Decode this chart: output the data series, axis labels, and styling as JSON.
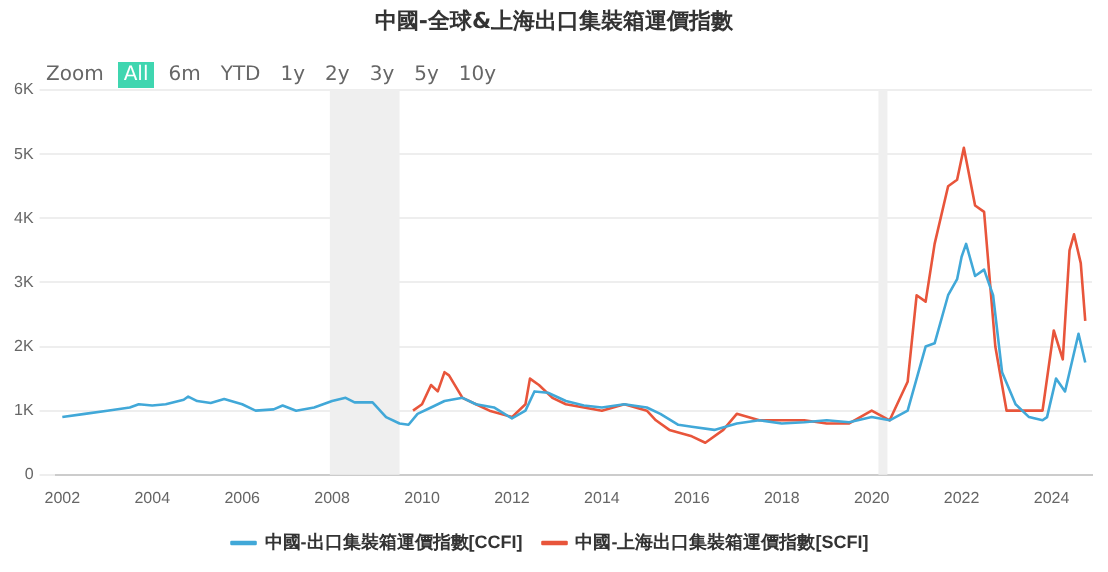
{
  "chart_data": {
    "type": "line",
    "title": "中國-全球&上海出口集裝箱運價指數",
    "annotations": [
      "Zoom",
      "All",
      "6m",
      "YTD",
      "1y",
      "2y",
      "3y",
      "5y",
      "10y"
    ],
    "xlim": [
      2001.85,
      2024.9
    ],
    "xticks": [
      2002,
      2004,
      2006,
      2008,
      2010,
      2012,
      2014,
      2016,
      2018,
      2020,
      2022,
      2024
    ],
    "ylim": [
      0,
      6000
    ],
    "yticks": [
      {
        "value": 0,
        "label": "0"
      },
      {
        "value": 1000,
        "label": "1K"
      },
      {
        "value": 2000,
        "label": "2K"
      },
      {
        "value": 3000,
        "label": "3K"
      },
      {
        "value": 4000,
        "label": "4K"
      },
      {
        "value": 5000,
        "label": "5K"
      },
      {
        "value": 6000,
        "label": "6K"
      }
    ],
    "grid": "y",
    "legend": "bottom",
    "marker": "none",
    "line_style": "solid",
    "bands": [
      {
        "axis": "x",
        "from": 2007.95,
        "to": 2009.5,
        "color": "#efefef"
      },
      {
        "axis": "x",
        "from": 2020.15,
        "to": 2020.35,
        "color": "#efefef"
      }
    ],
    "series": [
      {
        "name": "中國-出口集裝箱運價指數[CCFI]",
        "color": "#41a8d8",
        "x": [
          2002,
          2002.5,
          2003,
          2003.5,
          2003.7,
          2004,
          2004.3,
          2004.7,
          2004.8,
          2005,
          2005.3,
          2005.6,
          2006,
          2006.3,
          2006.7,
          2006.9,
          2007.2,
          2007.6,
          2008,
          2008.3,
          2008.5,
          2008.9,
          2009.2,
          2009.5,
          2009.7,
          2009.9,
          2010.2,
          2010.5,
          2010.9,
          2011.2,
          2011.6,
          2012,
          2012.3,
          2012.5,
          2012.8,
          2013.2,
          2013.6,
          2014,
          2014.5,
          2015,
          2015.3,
          2015.7,
          2016,
          2016.5,
          2017,
          2017.5,
          2018,
          2018.5,
          2019,
          2019.5,
          2020,
          2020.4,
          2020.8,
          2021,
          2021.2,
          2021.4,
          2021.7,
          2021.9,
          2022,
          2022.1,
          2022.3,
          2022.5,
          2022.7,
          2022.9,
          2023.2,
          2023.5,
          2023.8,
          2023.9,
          2024.1,
          2024.3,
          2024.5,
          2024.6,
          2024.75
        ],
        "values": [
          900,
          950,
          1000,
          1050,
          1100,
          1080,
          1100,
          1170,
          1220,
          1150,
          1120,
          1180,
          1100,
          1000,
          1020,
          1080,
          1000,
          1050,
          1150,
          1200,
          1130,
          1130,
          900,
          800,
          780,
          950,
          1050,
          1150,
          1200,
          1100,
          1050,
          880,
          1000,
          1300,
          1280,
          1150,
          1080,
          1050,
          1100,
          1050,
          950,
          780,
          750,
          700,
          800,
          850,
          800,
          820,
          850,
          820,
          900,
          850,
          1000,
          1500,
          2000,
          2050,
          2800,
          3050,
          3400,
          3600,
          3100,
          3200,
          2800,
          1600,
          1100,
          900,
          850,
          900,
          1500,
          1300,
          1900,
          2200,
          1750
        ]
      },
      {
        "name": "中國-上海出口集裝箱運價指數[SCFI]",
        "color": "#e8553b",
        "x": [
          2009.8,
          2010,
          2010.2,
          2010.35,
          2010.5,
          2010.6,
          2010.9,
          2011.2,
          2011.5,
          2012,
          2012.3,
          2012.4,
          2012.6,
          2012.9,
          2013.2,
          2013.6,
          2014,
          2014.5,
          2015,
          2015.2,
          2015.5,
          2016,
          2016.3,
          2016.7,
          2017,
          2017.5,
          2018,
          2018.5,
          2019,
          2019.5,
          2020,
          2020.4,
          2020.8,
          2021,
          2021.2,
          2021.4,
          2021.7,
          2021.9,
          2022.05,
          2022.3,
          2022.5,
          2022.75,
          2023,
          2023.5,
          2023.8,
          2024.05,
          2024.25,
          2024.4,
          2024.5,
          2024.65,
          2024.75
        ],
        "values": [
          1000,
          1100,
          1400,
          1300,
          1600,
          1550,
          1200,
          1100,
          1000,
          900,
          1100,
          1500,
          1400,
          1200,
          1100,
          1050,
          1000,
          1100,
          1000,
          850,
          700,
          600,
          500,
          700,
          950,
          850,
          850,
          850,
          800,
          800,
          1000,
          850,
          1450,
          2800,
          2700,
          3600,
          4500,
          4600,
          5100,
          4200,
          4100,
          2000,
          1000,
          1000,
          1000,
          2250,
          1800,
          3500,
          3750,
          3300,
          2400
        ]
      }
    ]
  }
}
